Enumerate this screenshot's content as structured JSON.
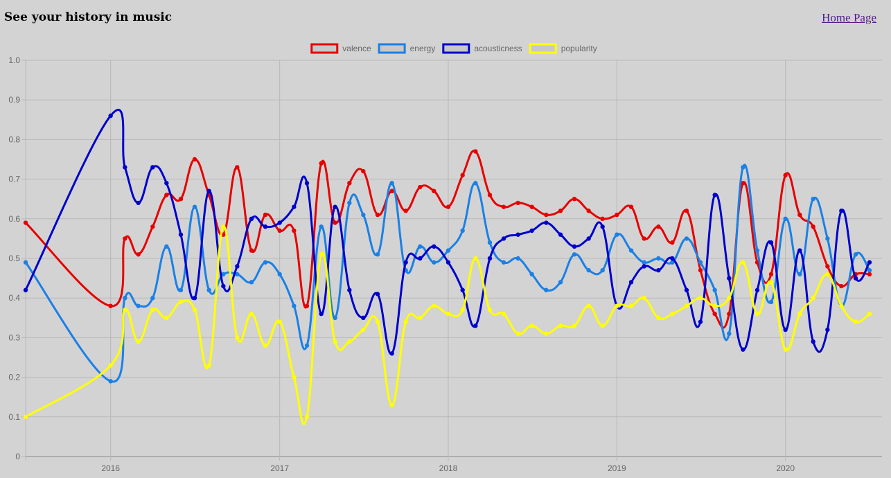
{
  "header": {
    "title": "See your history in music",
    "home_link": "Home Page"
  },
  "chart_data": {
    "type": "line",
    "title": "",
    "xlabel": "",
    "ylabel": "",
    "ylim": [
      0,
      1
    ],
    "yticks": [
      "0",
      "0.1",
      "0.2",
      "0.3",
      "0.4",
      "0.5",
      "0.6",
      "0.7",
      "0.8",
      "0.9",
      "1.0"
    ],
    "xlim": [
      "2015-07-01",
      "2020-07-28"
    ],
    "xticks": [
      {
        "date": "2016-01-01",
        "label": "2016"
      },
      {
        "date": "2017-01-01",
        "label": "2017"
      },
      {
        "date": "2018-01-01",
        "label": "2018"
      },
      {
        "date": "2019-01-01",
        "label": "2019"
      },
      {
        "date": "2020-01-01",
        "label": "2020"
      }
    ],
    "grid": true,
    "legend_position": "top-center",
    "x": [
      "2015-07-01",
      "2016-01-01",
      "2016-02-01",
      "2016-03-01",
      "2016-04-01",
      "2016-05-01",
      "2016-06-01",
      "2016-07-01",
      "2016-08-01",
      "2016-09-01",
      "2016-10-01",
      "2016-11-01",
      "2016-12-01",
      "2017-01-01",
      "2017-02-01",
      "2017-03-01",
      "2017-04-01",
      "2017-05-01",
      "2017-06-01",
      "2017-07-01",
      "2017-08-01",
      "2017-09-01",
      "2017-10-01",
      "2017-11-01",
      "2017-12-01",
      "2018-01-01",
      "2018-02-01",
      "2018-03-01",
      "2018-04-01",
      "2018-05-01",
      "2018-06-01",
      "2018-07-01",
      "2018-08-01",
      "2018-09-01",
      "2018-10-01",
      "2018-11-01",
      "2018-12-01",
      "2019-01-01",
      "2019-02-01",
      "2019-03-01",
      "2019-04-01",
      "2019-05-01",
      "2019-06-01",
      "2019-07-01",
      "2019-08-01",
      "2019-09-01",
      "2019-10-01",
      "2019-11-01",
      "2019-12-01",
      "2020-01-01",
      "2020-02-01",
      "2020-03-01",
      "2020-04-01",
      "2020-05-01",
      "2020-06-01",
      "2020-07-01"
    ],
    "series": [
      {
        "name": "valence",
        "color": "#e60000",
        "values": [
          0.59,
          0.38,
          0.55,
          0.51,
          0.58,
          0.66,
          0.65,
          0.75,
          0.66,
          0.56,
          0.73,
          0.52,
          0.61,
          0.57,
          0.57,
          0.38,
          0.74,
          0.59,
          0.69,
          0.72,
          0.61,
          0.67,
          0.62,
          0.68,
          0.67,
          0.63,
          0.71,
          0.77,
          0.66,
          0.63,
          0.64,
          0.63,
          0.61,
          0.62,
          0.65,
          0.62,
          0.6,
          0.61,
          0.63,
          0.55,
          0.58,
          0.54,
          0.62,
          0.47,
          0.36,
          0.36,
          0.69,
          0.49,
          0.46,
          0.71,
          0.61,
          0.58,
          0.48,
          0.43,
          0.46,
          0.46
        ]
      },
      {
        "name": "energy",
        "color": "#1a80e6",
        "values": [
          0.49,
          0.19,
          0.4,
          0.38,
          0.4,
          0.53,
          0.42,
          0.63,
          0.42,
          0.46,
          0.46,
          0.44,
          0.49,
          0.46,
          0.38,
          0.28,
          0.58,
          0.35,
          0.64,
          0.61,
          0.51,
          0.69,
          0.47,
          0.53,
          0.49,
          0.52,
          0.57,
          0.69,
          0.54,
          0.49,
          0.5,
          0.46,
          0.42,
          0.44,
          0.51,
          0.47,
          0.47,
          0.56,
          0.52,
          0.49,
          0.5,
          0.49,
          0.55,
          0.49,
          0.42,
          0.31,
          0.73,
          0.52,
          0.39,
          0.6,
          0.46,
          0.65,
          0.55,
          0.38,
          0.51,
          0.47
        ]
      },
      {
        "name": "acousticness",
        "color": "#0000cc",
        "values": [
          0.42,
          0.86,
          0.73,
          0.64,
          0.73,
          0.69,
          0.56,
          0.4,
          0.67,
          0.43,
          0.48,
          0.6,
          0.58,
          0.59,
          0.63,
          0.69,
          0.36,
          0.63,
          0.42,
          0.35,
          0.41,
          0.26,
          0.49,
          0.5,
          0.53,
          0.49,
          0.42,
          0.33,
          0.5,
          0.55,
          0.56,
          0.57,
          0.59,
          0.56,
          0.53,
          0.55,
          0.58,
          0.38,
          0.44,
          0.48,
          0.47,
          0.5,
          0.42,
          0.34,
          0.66,
          0.45,
          0.27,
          0.42,
          0.54,
          0.32,
          0.52,
          0.29,
          0.32,
          0.62,
          0.45,
          0.49
        ]
      },
      {
        "name": "popularity",
        "color": "#ffff00",
        "values": [
          0.1,
          0.23,
          0.37,
          0.29,
          0.37,
          0.35,
          0.39,
          0.37,
          0.23,
          0.58,
          0.3,
          0.36,
          0.28,
          0.34,
          0.2,
          0.1,
          0.51,
          0.29,
          0.29,
          0.32,
          0.34,
          0.13,
          0.34,
          0.35,
          0.38,
          0.36,
          0.37,
          0.5,
          0.37,
          0.36,
          0.31,
          0.33,
          0.31,
          0.33,
          0.33,
          0.38,
          0.33,
          0.38,
          0.38,
          0.4,
          0.35,
          0.36,
          0.38,
          0.4,
          0.38,
          0.4,
          0.49,
          0.36,
          0.44,
          0.27,
          0.36,
          0.4,
          0.46,
          0.38,
          0.34,
          0.36
        ]
      }
    ]
  }
}
